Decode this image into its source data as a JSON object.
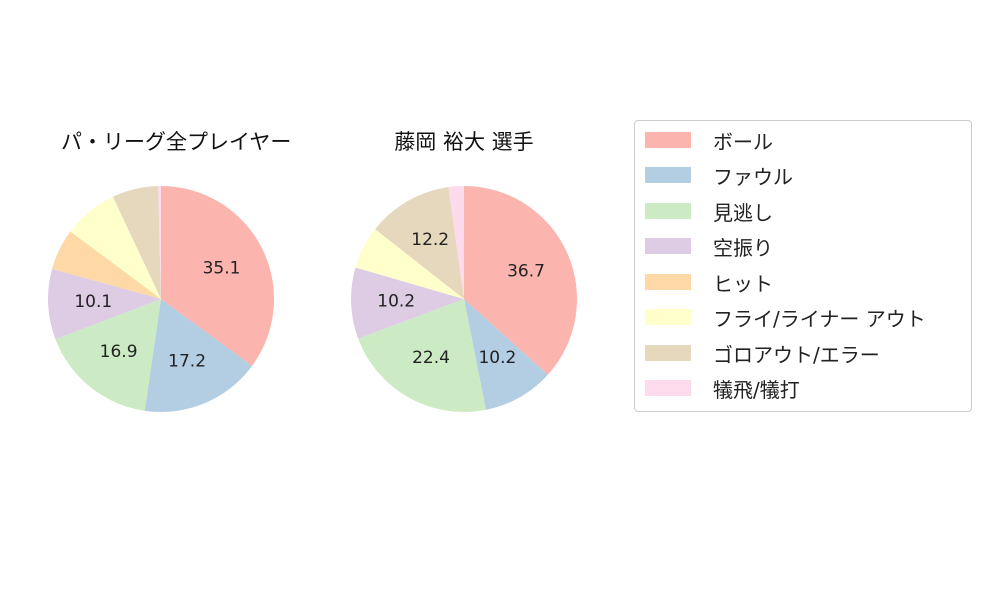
{
  "chart_data": [
    {
      "type": "pie",
      "title": "パ・リーグ全プレイヤー",
      "categories": [
        "ボール",
        "ファウル",
        "見逃し",
        "空振り",
        "ヒット",
        "フライ/ライナー アウト",
        "ゴロアウト/エラー",
        "犠飛/犠打"
      ],
      "values": [
        35.1,
        17.2,
        16.9,
        10.1,
        5.9,
        7.8,
        6.6,
        0.4
      ],
      "labels": [
        "35.1",
        "17.2",
        "16.9",
        "10.1",
        "",
        "",
        "",
        ""
      ]
    },
    {
      "type": "pie",
      "title": "藤岡 裕大  選手",
      "categories": [
        "ボール",
        "ファウル",
        "見逃し",
        "空振り",
        "ヒット",
        "フライ/ライナー アウト",
        "ゴロアウト/エラー",
        "犠飛/犠打"
      ],
      "values": [
        36.7,
        10.2,
        22.4,
        10.2,
        0,
        6.1,
        12.2,
        2.2
      ],
      "labels": [
        "36.7",
        "10.2",
        "22.4",
        "10.2",
        "",
        "",
        "12.2",
        ""
      ]
    }
  ],
  "legend": {
    "items": [
      {
        "label": "ボール",
        "color": "#fbb4ae"
      },
      {
        "label": "ファウル",
        "color": "#b3cde3"
      },
      {
        "label": "見逃し",
        "color": "#ccebc5"
      },
      {
        "label": "空振り",
        "color": "#decbe4"
      },
      {
        "label": "ヒット",
        "color": "#fed9a6"
      },
      {
        "label": "フライ/ライナー アウト",
        "color": "#ffffcc"
      },
      {
        "label": "ゴロアウト/エラー",
        "color": "#e5d8bd"
      },
      {
        "label": "犠飛/犠打",
        "color": "#fddaec"
      }
    ]
  }
}
